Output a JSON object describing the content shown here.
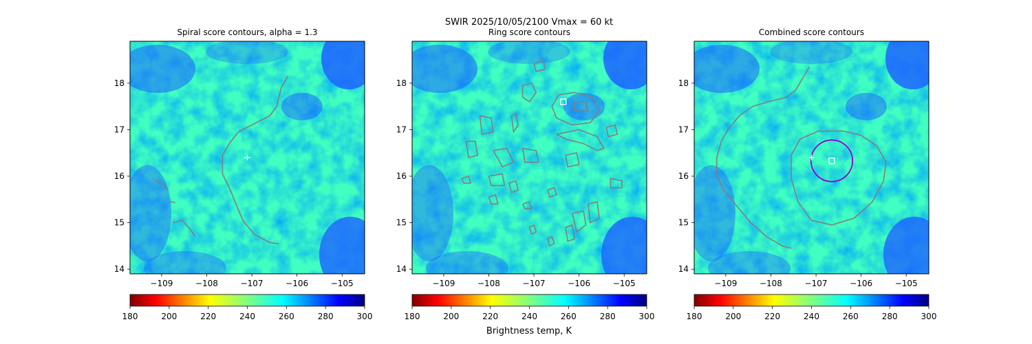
{
  "suptitle": "SWIR  2025/10/05/2100    Vmax = 60 kt",
  "colorbar": {
    "label": "Brightness temp, K",
    "min": 180,
    "max": 300,
    "ticks": [
      180,
      200,
      220,
      240,
      260,
      280,
      300
    ],
    "tick_labels": [
      "180",
      "200",
      "220",
      "240",
      "260",
      "280",
      "300"
    ],
    "colormap": "jet-reversed"
  },
  "colors": {
    "contour": "#808080",
    "marker": "#ffffff",
    "fit_circle": "#9400d3",
    "background_field": "#40ffc0",
    "cold_cloud": "#1e64ff"
  },
  "chart_data": [
    {
      "type": "heatmap",
      "title": "Spiral score contours, alpha =  1.3",
      "x_ticks": [
        -109,
        -108,
        -107,
        -106,
        -105
      ],
      "x_tick_labels": [
        "−109",
        "−108",
        "−107",
        "−106",
        "−105"
      ],
      "y_ticks": [
        14,
        15,
        16,
        17,
        18
      ],
      "y_tick_labels": [
        "14",
        "15",
        "16",
        "17",
        "18"
      ],
      "xlim": [
        -109.7,
        -104.5
      ],
      "ylim": [
        13.9,
        18.9
      ],
      "contours": [
        [
          [
            -106.2,
            18.15
          ],
          [
            -106.35,
            17.9
          ],
          [
            -106.45,
            17.5
          ],
          [
            -106.6,
            17.3
          ],
          [
            -106.9,
            17.15
          ],
          [
            -107.3,
            16.95
          ],
          [
            -107.5,
            16.7
          ],
          [
            -107.65,
            16.45
          ],
          [
            -107.65,
            16.05
          ],
          [
            -107.5,
            15.75
          ],
          [
            -107.35,
            15.4
          ],
          [
            -107.2,
            15.05
          ],
          [
            -106.95,
            14.75
          ],
          [
            -106.6,
            14.57
          ],
          [
            -106.4,
            14.55
          ]
        ],
        [
          [
            -109.2,
            15.95
          ],
          [
            -108.95,
            15.8
          ],
          [
            -108.85,
            15.7
          ]
        ],
        [
          [
            -108.8,
            15.45
          ],
          [
            -108.7,
            15.43
          ]
        ],
        [
          [
            -108.75,
            15.0
          ],
          [
            -108.55,
            15.05
          ],
          [
            -108.4,
            14.9
          ],
          [
            -108.25,
            14.7
          ]
        ]
      ],
      "markers": [
        {
          "symbol": "plus",
          "x": -107.1,
          "y": 16.4
        }
      ]
    },
    {
      "type": "heatmap",
      "title": "Ring score contours",
      "x_ticks": [
        -109,
        -108,
        -107,
        -106,
        -105
      ],
      "x_tick_labels": [
        "−109",
        "−108",
        "−107",
        "−106",
        "−105"
      ],
      "y_ticks": [
        14,
        15,
        16,
        17,
        18
      ],
      "y_tick_labels": [
        "14",
        "15",
        "16",
        "17",
        "18"
      ],
      "xlim": [
        -109.7,
        -104.5
      ],
      "ylim": [
        13.9,
        18.9
      ],
      "contours": [
        [
          [
            -106.45,
            17.75
          ],
          [
            -106.1,
            17.8
          ],
          [
            -105.7,
            17.7
          ],
          [
            -105.55,
            17.4
          ],
          [
            -105.75,
            17.15
          ],
          [
            -106.15,
            17.1
          ],
          [
            -106.5,
            17.25
          ],
          [
            -106.6,
            17.5
          ],
          [
            -106.45,
            17.75
          ]
        ],
        [
          [
            -106.1,
            17.6
          ],
          [
            -105.85,
            17.6
          ],
          [
            -105.8,
            17.4
          ],
          [
            -106.1,
            17.4
          ],
          [
            -106.1,
            17.6
          ]
        ],
        [
          [
            -106.5,
            16.9
          ],
          [
            -106.0,
            17.0
          ],
          [
            -105.6,
            16.85
          ],
          [
            -105.45,
            16.6
          ],
          [
            -105.6,
            16.55
          ],
          [
            -105.9,
            16.7
          ],
          [
            -106.3,
            16.8
          ],
          [
            -106.5,
            16.9
          ]
        ],
        [
          [
            -107.25,
            17.95
          ],
          [
            -107.05,
            18.0
          ],
          [
            -106.95,
            17.8
          ],
          [
            -107.1,
            17.6
          ],
          [
            -107.25,
            17.7
          ],
          [
            -107.25,
            17.95
          ]
        ],
        [
          [
            -107.0,
            18.4
          ],
          [
            -106.8,
            18.5
          ],
          [
            -106.75,
            18.3
          ],
          [
            -106.95,
            18.25
          ],
          [
            -107.0,
            18.4
          ]
        ],
        [
          [
            -107.5,
            17.3
          ],
          [
            -107.4,
            17.35
          ],
          [
            -107.35,
            17.1
          ],
          [
            -107.45,
            16.95
          ],
          [
            -107.5,
            17.3
          ]
        ],
        [
          [
            -108.2,
            17.3
          ],
          [
            -107.95,
            17.25
          ],
          [
            -107.9,
            16.95
          ],
          [
            -108.15,
            16.9
          ],
          [
            -108.2,
            17.3
          ]
        ],
        [
          [
            -108.5,
            16.75
          ],
          [
            -108.3,
            16.75
          ],
          [
            -108.25,
            16.45
          ],
          [
            -108.45,
            16.4
          ],
          [
            -108.5,
            16.75
          ]
        ],
        [
          [
            -107.9,
            16.55
          ],
          [
            -107.6,
            16.6
          ],
          [
            -107.45,
            16.3
          ],
          [
            -107.7,
            16.2
          ],
          [
            -107.9,
            16.55
          ]
        ],
        [
          [
            -107.25,
            16.6
          ],
          [
            -106.95,
            16.55
          ],
          [
            -106.9,
            16.3
          ],
          [
            -107.2,
            16.3
          ],
          [
            -107.25,
            16.6
          ]
        ],
        [
          [
            -106.3,
            16.45
          ],
          [
            -106.05,
            16.5
          ],
          [
            -106.0,
            16.25
          ],
          [
            -106.25,
            16.2
          ],
          [
            -106.3,
            16.45
          ]
        ],
        [
          [
            -108.0,
            16.0
          ],
          [
            -107.7,
            16.05
          ],
          [
            -107.65,
            15.8
          ],
          [
            -107.95,
            15.8
          ],
          [
            -108.0,
            16.0
          ]
        ],
        [
          [
            -107.55,
            15.85
          ],
          [
            -107.4,
            15.9
          ],
          [
            -107.35,
            15.7
          ],
          [
            -107.5,
            15.65
          ],
          [
            -107.55,
            15.85
          ]
        ],
        [
          [
            -105.3,
            15.95
          ],
          [
            -105.05,
            15.9
          ],
          [
            -105.05,
            15.75
          ],
          [
            -105.3,
            15.75
          ],
          [
            -105.3,
            15.95
          ]
        ],
        [
          [
            -105.8,
            15.4
          ],
          [
            -105.6,
            15.45
          ],
          [
            -105.55,
            15.1
          ],
          [
            -105.75,
            15.0
          ],
          [
            -105.8,
            15.4
          ]
        ],
        [
          [
            -106.15,
            15.2
          ],
          [
            -105.9,
            15.25
          ],
          [
            -105.85,
            14.95
          ],
          [
            -106.05,
            14.8
          ],
          [
            -106.15,
            15.2
          ]
        ],
        [
          [
            -106.3,
            14.9
          ],
          [
            -106.15,
            14.95
          ],
          [
            -106.1,
            14.65
          ],
          [
            -106.25,
            14.6
          ],
          [
            -106.3,
            14.9
          ]
        ],
        [
          [
            -108.0,
            15.55
          ],
          [
            -107.85,
            15.6
          ],
          [
            -107.8,
            15.4
          ],
          [
            -107.95,
            15.4
          ],
          [
            -108.0,
            15.55
          ]
        ],
        [
          [
            -108.6,
            15.95
          ],
          [
            -108.45,
            16.0
          ],
          [
            -108.4,
            15.85
          ],
          [
            -108.55,
            15.85
          ],
          [
            -108.6,
            15.95
          ]
        ],
        [
          [
            -107.25,
            15.4
          ],
          [
            -107.1,
            15.45
          ],
          [
            -107.05,
            15.3
          ],
          [
            -107.2,
            15.3
          ],
          [
            -107.25,
            15.4
          ]
        ],
        [
          [
            -106.7,
            15.7
          ],
          [
            -106.55,
            15.75
          ],
          [
            -106.5,
            15.6
          ],
          [
            -106.65,
            15.55
          ],
          [
            -106.7,
            15.7
          ]
        ],
        [
          [
            -107.1,
            14.9
          ],
          [
            -107.0,
            14.95
          ],
          [
            -106.95,
            14.8
          ],
          [
            -107.05,
            14.75
          ],
          [
            -107.1,
            14.9
          ]
        ],
        [
          [
            -106.7,
            14.65
          ],
          [
            -106.6,
            14.7
          ],
          [
            -106.55,
            14.55
          ],
          [
            -106.65,
            14.5
          ],
          [
            -106.7,
            14.65
          ]
        ],
        [
          [
            -105.4,
            17.05
          ],
          [
            -105.2,
            17.1
          ],
          [
            -105.15,
            16.9
          ],
          [
            -105.35,
            16.85
          ],
          [
            -105.4,
            17.05
          ]
        ]
      ],
      "markers": [
        {
          "symbol": "square",
          "x": -106.35,
          "y": 17.6
        }
      ]
    },
    {
      "type": "heatmap",
      "title": "Combined score contours",
      "x_ticks": [
        -109,
        -108,
        -107,
        -106,
        -105
      ],
      "x_tick_labels": [
        "−109",
        "−108",
        "−107",
        "−106",
        "−105"
      ],
      "y_ticks": [
        14,
        15,
        16,
        17,
        18
      ],
      "y_tick_labels": [
        "14",
        "15",
        "16",
        "17",
        "18"
      ],
      "xlim": [
        -109.7,
        -104.5
      ],
      "ylim": [
        13.9,
        18.9
      ],
      "contours": [
        [
          [
            -107.15,
            18.35
          ],
          [
            -107.3,
            18.1
          ],
          [
            -107.45,
            17.85
          ],
          [
            -107.65,
            17.7
          ],
          [
            -108.05,
            17.6
          ],
          [
            -108.4,
            17.5
          ],
          [
            -108.7,
            17.3
          ],
          [
            -108.95,
            17.0
          ],
          [
            -109.1,
            16.75
          ],
          [
            -109.2,
            16.4
          ],
          [
            -109.2,
            16.05
          ],
          [
            -109.05,
            15.7
          ],
          [
            -108.75,
            15.35
          ],
          [
            -108.45,
            15.0
          ],
          [
            -108.1,
            14.7
          ],
          [
            -107.75,
            14.5
          ],
          [
            -107.55,
            14.45
          ]
        ],
        [
          [
            -106.4,
            16.97
          ],
          [
            -106.0,
            16.88
          ],
          [
            -105.65,
            16.65
          ],
          [
            -105.45,
            16.3
          ],
          [
            -105.5,
            15.9
          ],
          [
            -105.75,
            15.45
          ],
          [
            -106.15,
            15.1
          ],
          [
            -106.65,
            14.95
          ],
          [
            -107.1,
            15.05
          ],
          [
            -107.4,
            15.45
          ],
          [
            -107.55,
            15.95
          ],
          [
            -107.55,
            16.45
          ],
          [
            -107.35,
            16.8
          ],
          [
            -106.95,
            16.97
          ],
          [
            -106.4,
            16.97
          ]
        ]
      ],
      "circle": {
        "cx": -106.65,
        "cy": 16.33,
        "r": 0.46
      },
      "markers": [
        {
          "symbol": "square",
          "x": -106.65,
          "y": 16.33
        },
        {
          "symbol": "plus",
          "x": -107.1,
          "y": 16.4
        }
      ]
    }
  ]
}
